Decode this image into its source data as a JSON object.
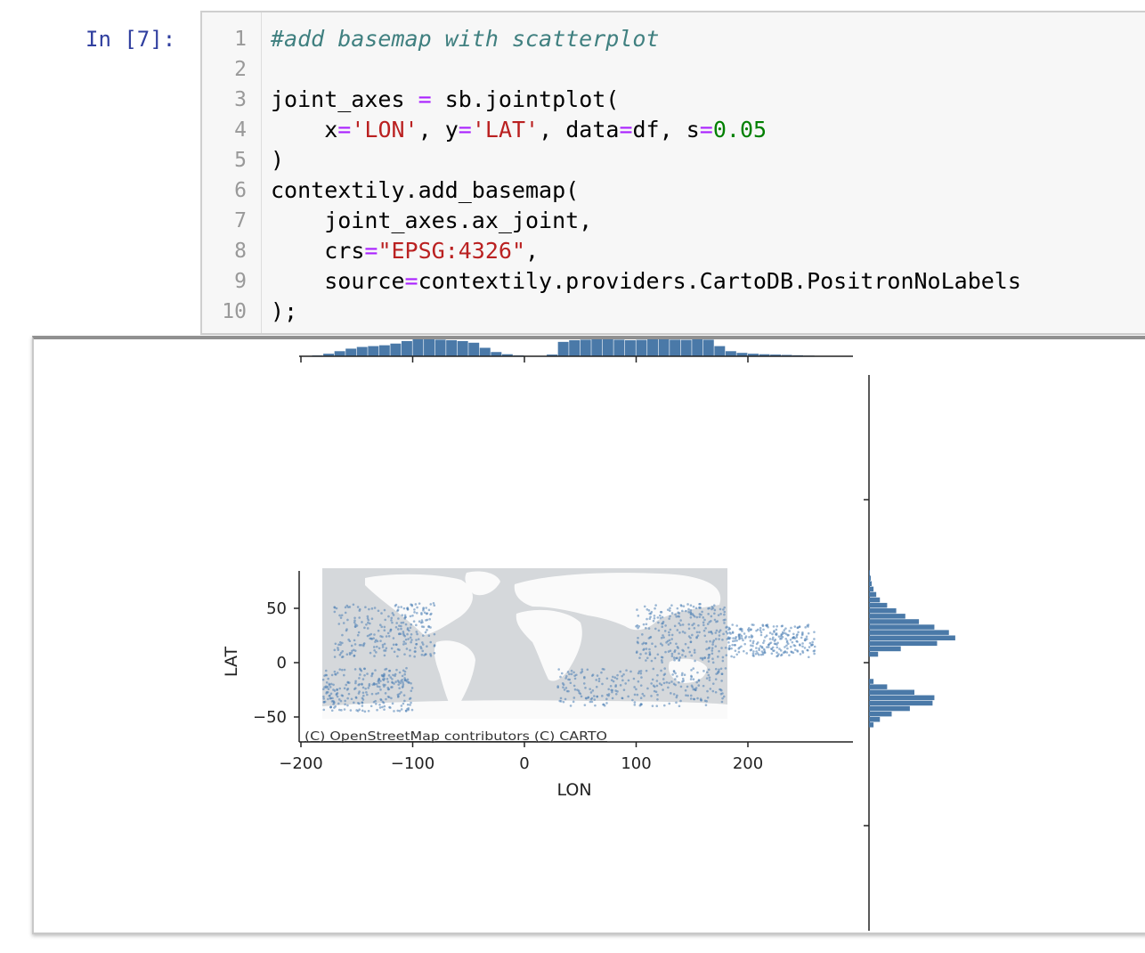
{
  "prompt": "In [7]:",
  "code": {
    "line_numbers": [
      "1",
      "2",
      "3",
      "4",
      "5",
      "6",
      "7",
      "8",
      "9",
      "10"
    ],
    "comment": "#add basemap with scatterplot",
    "l3": {
      "a": "joint_axes ",
      "op": "=",
      "b": " sb.jointplot("
    },
    "l4": {
      "indent": "    ",
      "x": "x",
      "eq": "=",
      "xv": "'LON'",
      "sep1": ", ",
      "y": "y",
      "yv": "'LAT'",
      "sep2": ", ",
      "data": "data",
      "datav": "df",
      "sep3": ", ",
      "s": "s",
      "sv": "0.05"
    },
    "l5": ")",
    "l6": "contextily.add_basemap(",
    "l7": "    joint_axes.ax_joint,",
    "l8": {
      "indent": "    ",
      "k": "crs",
      "eq": "=",
      "v": "\"EPSG:4326\"",
      "end": ","
    },
    "l9": {
      "indent": "    ",
      "k": "source",
      "eq": "=",
      "v": "contextily.providers.CartoDB.PositronNoLabels"
    },
    "l10": ");"
  },
  "plot": {
    "xlabel": "LON",
    "ylabel": "LAT",
    "attribution": "(C) OpenStreetMap contributors (C) CARTO",
    "xticks": [
      "−200",
      "−100",
      "0",
      "100",
      "200"
    ],
    "yticks": [
      "50",
      "0",
      "−50"
    ]
  },
  "colors": {
    "scatter": "#4c7fb5",
    "hist": "#4a79a8",
    "map_bg": "#d5d8db",
    "land": "#fafafa"
  },
  "chart_data": {
    "type": "scatter",
    "xlabel": "LON",
    "ylabel": "LAT",
    "xlim": [
      -200,
      290
    ],
    "ylim": [
      -65,
      80
    ],
    "x_ticks": [
      -200,
      -100,
      0,
      100,
      200
    ],
    "y_ticks": [
      50,
      0,
      -50
    ],
    "marginal_histograms": true,
    "basemap": "CartoDB.PositronNoLabels",
    "lon_hist": {
      "bins": [
        -190,
        -180,
        -170,
        -160,
        -150,
        -140,
        -130,
        -120,
        -110,
        -100,
        -90,
        -80,
        -70,
        -60,
        -50,
        -40,
        -30,
        -20,
        -10,
        0,
        10,
        20,
        30,
        40,
        50,
        60,
        70,
        80,
        90,
        100,
        110,
        120,
        130,
        140,
        150,
        160,
        170,
        180,
        190,
        200,
        210,
        220,
        230,
        240,
        250,
        260,
        270
      ],
      "counts": [
        0.05,
        0.15,
        0.3,
        0.45,
        0.55,
        0.6,
        0.65,
        0.75,
        0.9,
        1.0,
        1.0,
        0.98,
        0.95,
        0.9,
        0.8,
        0.5,
        0.25,
        0.12,
        0.05,
        0.02,
        0.02,
        0.1,
        0.85,
        0.95,
        0.98,
        1.0,
        1.0,
        0.98,
        0.95,
        0.97,
        1.0,
        1.0,
        0.98,
        0.97,
        1.0,
        0.98,
        0.6,
        0.3,
        0.2,
        0.15,
        0.12,
        0.1,
        0.08,
        0.06,
        0.04,
        0.02,
        0.0
      ]
    },
    "lat_hist": {
      "bins": [
        -60,
        -55,
        -50,
        -45,
        -40,
        -35,
        -30,
        -25,
        -20,
        -15,
        -10,
        -5,
        0,
        5,
        10,
        15,
        20,
        25,
        30,
        35,
        40,
        45,
        50,
        55,
        60,
        65,
        70,
        75,
        80
      ],
      "counts": [
        0.05,
        0.12,
        0.25,
        0.45,
        0.7,
        0.72,
        0.5,
        0.2,
        0.05,
        0.0,
        0.0,
        0.0,
        0.0,
        0.1,
        0.35,
        0.75,
        0.95,
        0.88,
        0.72,
        0.55,
        0.4,
        0.3,
        0.2,
        0.12,
        0.08,
        0.05,
        0.03,
        0.02,
        0.01
      ]
    },
    "track_regions": [
      {
        "lon": [
          -170,
          -80
        ],
        "lat": [
          5,
          55
        ]
      },
      {
        "lon": [
          -180,
          -100
        ],
        "lat": [
          -45,
          -5
        ]
      },
      {
        "lon": [
          30,
          180
        ],
        "lat": [
          -40,
          -5
        ]
      },
      {
        "lon": [
          100,
          180
        ],
        "lat": [
          0,
          55
        ]
      },
      {
        "lon": [
          180,
          260
        ],
        "lat": [
          5,
          35
        ]
      }
    ]
  }
}
